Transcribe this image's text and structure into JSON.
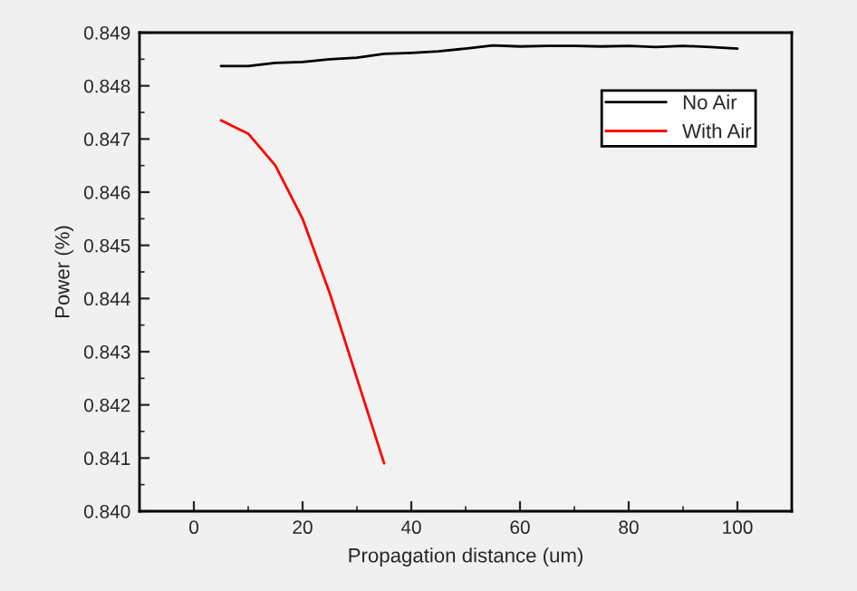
{
  "chart_data": {
    "type": "line",
    "xlabel": "Propagation distance (um)",
    "ylabel": "Power (%)",
    "xlim": [
      -10,
      110
    ],
    "xticks": [
      0,
      20,
      40,
      60,
      80,
      100
    ],
    "ylim": [
      0.84,
      0.849
    ],
    "yticks": [
      {
        "value": 0.84,
        "label": "0.840"
      },
      0.841,
      0.842,
      0.843,
      0.844,
      0.845,
      0.846,
      0.847,
      0.848,
      0.849
    ],
    "grid": false,
    "legend": "top right",
    "marker": "none",
    "line_style": "solid",
    "series": [
      {
        "name": "No Air",
        "color": "#000000",
        "x": [
          5,
          10,
          15,
          20,
          25,
          30,
          35,
          40,
          45,
          50,
          55,
          60,
          65,
          70,
          75,
          80,
          85,
          90,
          95,
          100
        ],
        "values": [
          0.84837,
          0.84837,
          0.84843,
          0.84845,
          0.8485,
          0.84853,
          0.8486,
          0.84862,
          0.84865,
          0.8487,
          0.84876,
          0.84874,
          0.84875,
          0.84875,
          0.84874,
          0.84875,
          0.84873,
          0.84875,
          0.84873,
          0.8487
        ]
      },
      {
        "name": "With Air",
        "color": "#ff0000",
        "x": [
          5,
          10,
          15,
          20,
          25,
          30,
          35
        ],
        "values": [
          0.84735,
          0.8471,
          0.8465,
          0.8455,
          0.8441,
          0.8425,
          0.8409
        ]
      }
    ]
  }
}
